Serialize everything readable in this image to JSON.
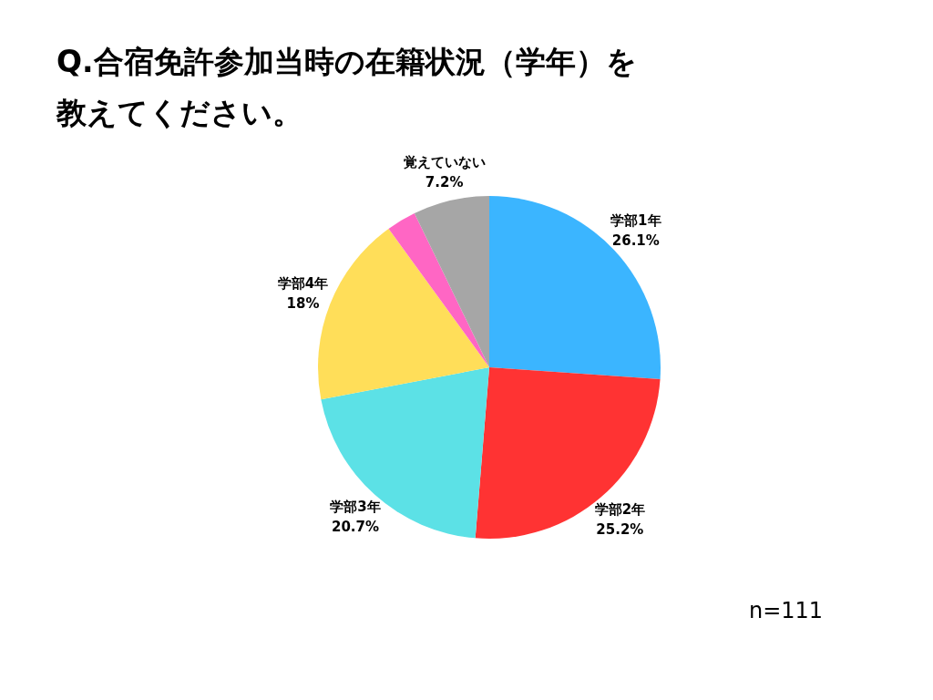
{
  "chart_data": {
    "type": "pie",
    "title": "Q.合宿免許参加当時の在籍状況（学年）を教えてください。",
    "categories": [
      "学部1年",
      "学部2年",
      "学部3年",
      "学部4年",
      null,
      "覚えていない"
    ],
    "values": [
      26.1,
      25.2,
      20.7,
      18,
      2.8,
      7.2
    ],
    "value_labels": [
      "26.1%",
      "25.2%",
      "20.7%",
      "18%",
      null,
      "7.2%"
    ],
    "colors": [
      "#3bb5ff",
      "#ff3333",
      "#5ce1e6",
      "#ffde59",
      "#ff66c4",
      "#a6a6a6"
    ],
    "annotations": [
      "n=111"
    ]
  }
}
